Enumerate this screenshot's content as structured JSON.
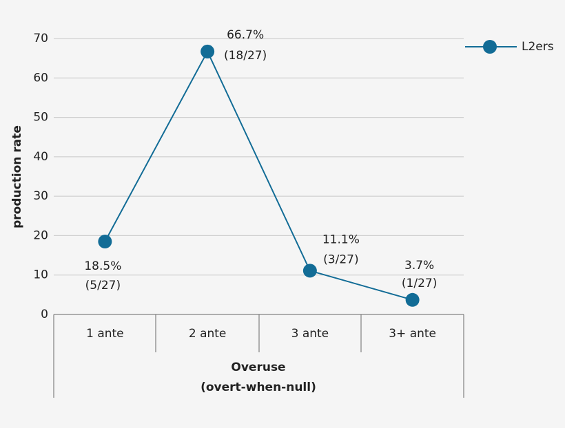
{
  "chart_data": {
    "type": "line",
    "ylabel": "production rate",
    "xlabel": [
      "Overuse",
      "(overt-when-null)"
    ],
    "categories": [
      "1 ante",
      "2 ante",
      "3 ante",
      "3+ ante"
    ],
    "series": [
      {
        "name": "L2ers",
        "color": "#126c96",
        "values": [
          18.5,
          66.7,
          11.1,
          3.7
        ],
        "value_labels": [
          "18.5%",
          "66.7%",
          "11.1%",
          "3.7%"
        ],
        "counts": [
          "(5/27)",
          "(18/27)",
          "(3/27)",
          "(1/27)"
        ]
      }
    ],
    "ylim": [
      0,
      70
    ],
    "yticks": [
      0,
      10,
      20,
      30,
      40,
      50,
      60,
      70
    ],
    "grid": true,
    "legend": "top-right"
  }
}
